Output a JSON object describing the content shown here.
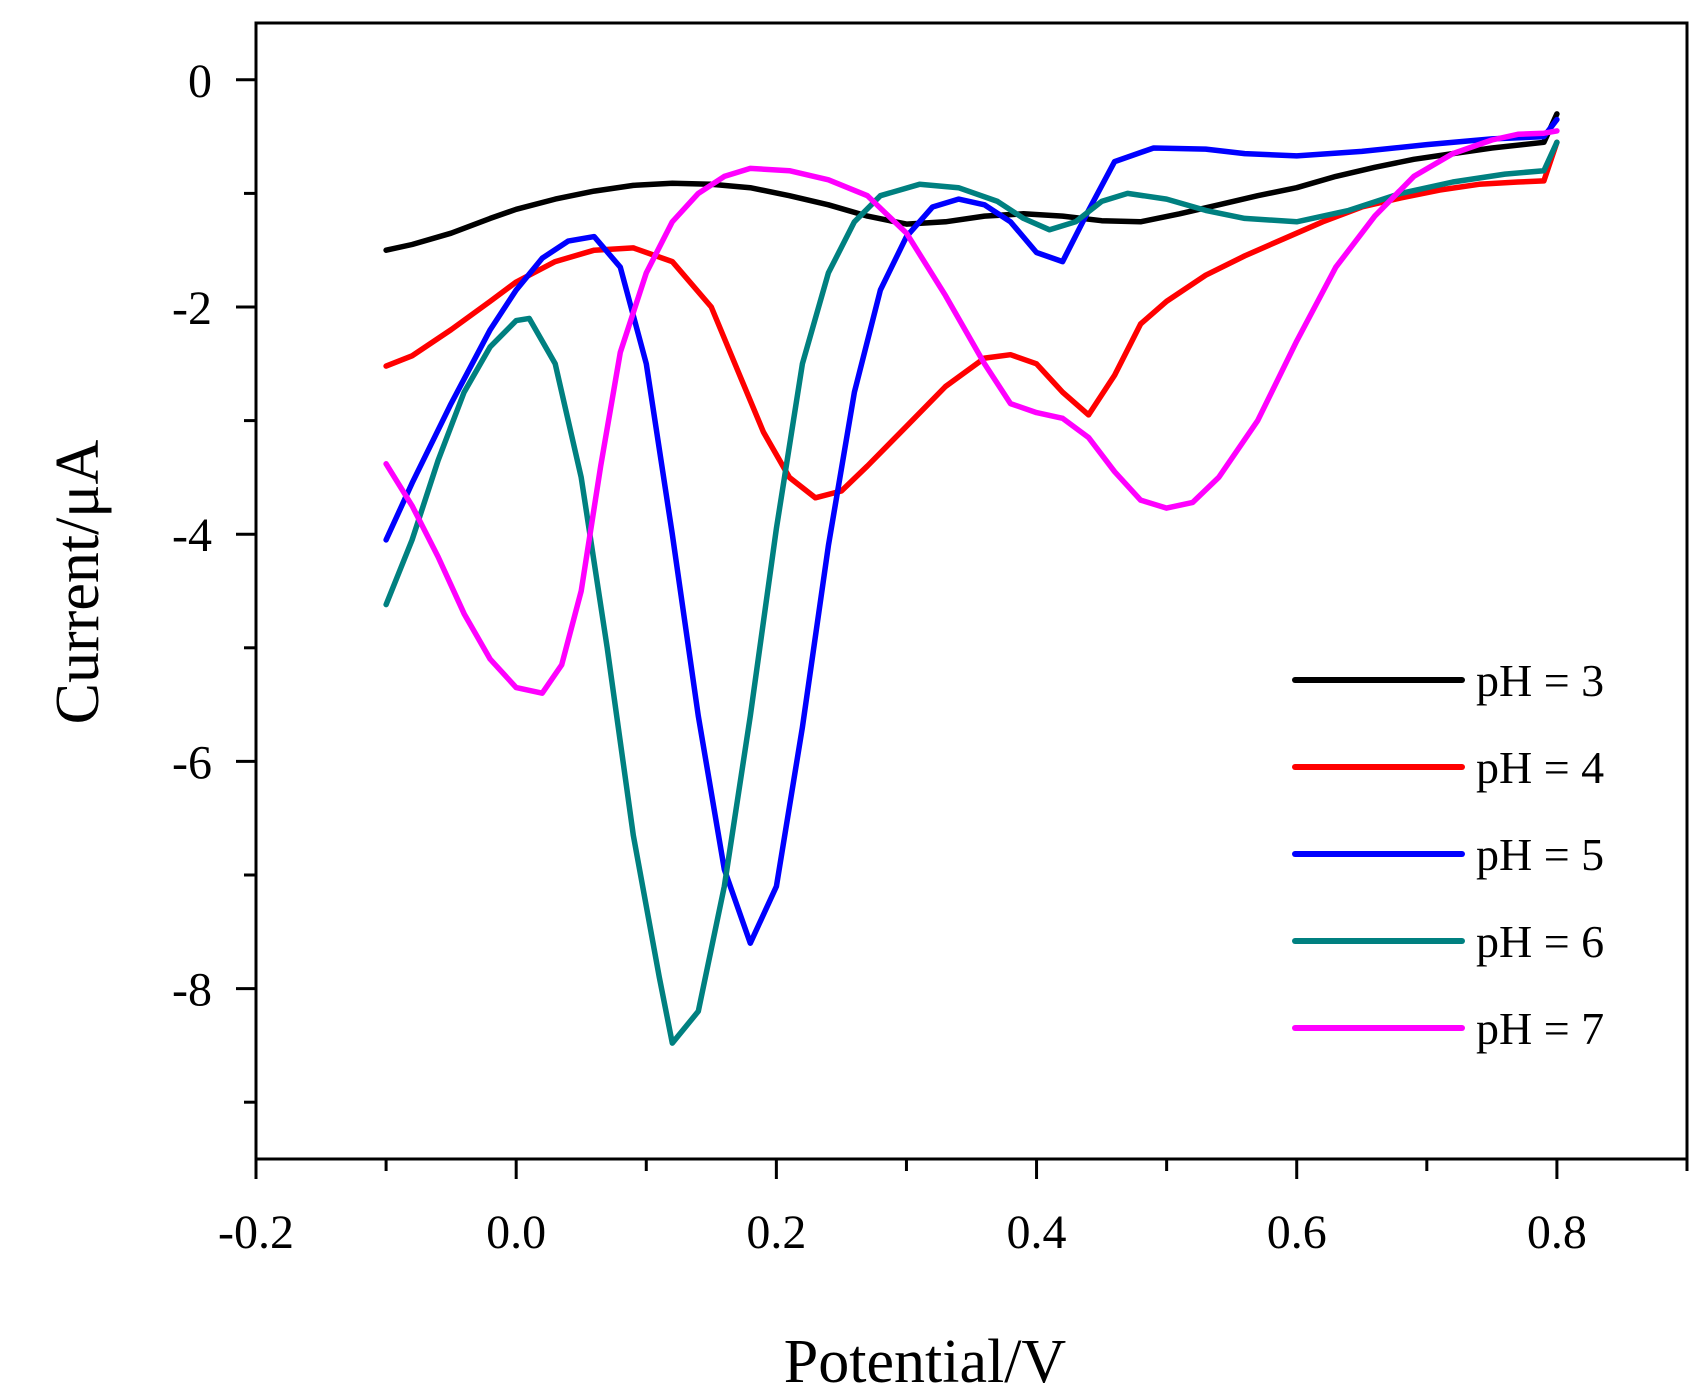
{
  "chart_data": {
    "type": "line",
    "title": "",
    "xlabel": "Potential/V",
    "ylabel": "Current/μA",
    "xlim": [
      -0.2,
      0.9
    ],
    "ylim": [
      -9.5,
      0.5
    ],
    "xticks": [
      {
        "value": -0.2,
        "label": "-0.2"
      },
      {
        "value": 0.0,
        "label": "0.0"
      },
      {
        "value": 0.2,
        "label": "0.2"
      },
      {
        "value": 0.4,
        "label": "0.4"
      },
      {
        "value": 0.6,
        "label": "0.6"
      },
      {
        "value": 0.8,
        "label": "0.8"
      }
    ],
    "xminor": [
      -0.1,
      0.1,
      0.3,
      0.5,
      0.7,
      0.9
    ],
    "yticks": [
      {
        "value": 0,
        "label": "0"
      },
      {
        "value": -2,
        "label": "-2"
      },
      {
        "value": -4,
        "label": "-4"
      },
      {
        "value": -6,
        "label": "-6"
      },
      {
        "value": -8,
        "label": "-8"
      }
    ],
    "yminor": [
      -1,
      -3,
      -5,
      -7,
      -9
    ],
    "grid": false,
    "legend_position": "bottom-right",
    "series": [
      {
        "name": "pH = 3",
        "color": "#000000",
        "points": [
          [
            -0.1,
            -1.5
          ],
          [
            -0.08,
            -1.45
          ],
          [
            -0.05,
            -1.35
          ],
          [
            -0.02,
            -1.22
          ],
          [
            0.0,
            -1.14
          ],
          [
            0.03,
            -1.05
          ],
          [
            0.06,
            -0.98
          ],
          [
            0.09,
            -0.93
          ],
          [
            0.12,
            -0.91
          ],
          [
            0.15,
            -0.92
          ],
          [
            0.18,
            -0.95
          ],
          [
            0.21,
            -1.02
          ],
          [
            0.24,
            -1.1
          ],
          [
            0.27,
            -1.2
          ],
          [
            0.3,
            -1.27
          ],
          [
            0.33,
            -1.25
          ],
          [
            0.36,
            -1.2
          ],
          [
            0.39,
            -1.18
          ],
          [
            0.42,
            -1.2
          ],
          [
            0.45,
            -1.24
          ],
          [
            0.48,
            -1.25
          ],
          [
            0.51,
            -1.18
          ],
          [
            0.54,
            -1.1
          ],
          [
            0.57,
            -1.02
          ],
          [
            0.6,
            -0.95
          ],
          [
            0.63,
            -0.85
          ],
          [
            0.66,
            -0.77
          ],
          [
            0.69,
            -0.7
          ],
          [
            0.72,
            -0.65
          ],
          [
            0.75,
            -0.6
          ],
          [
            0.79,
            -0.55
          ],
          [
            0.8,
            -0.3
          ]
        ]
      },
      {
        "name": "pH = 4",
        "color": "#ff0000",
        "points": [
          [
            -0.1,
            -2.52
          ],
          [
            -0.08,
            -2.43
          ],
          [
            -0.05,
            -2.2
          ],
          [
            -0.02,
            -1.95
          ],
          [
            0.0,
            -1.78
          ],
          [
            0.03,
            -1.6
          ],
          [
            0.06,
            -1.5
          ],
          [
            0.09,
            -1.48
          ],
          [
            0.12,
            -1.6
          ],
          [
            0.15,
            -2.0
          ],
          [
            0.17,
            -2.55
          ],
          [
            0.19,
            -3.1
          ],
          [
            0.21,
            -3.5
          ],
          [
            0.23,
            -3.68
          ],
          [
            0.25,
            -3.62
          ],
          [
            0.27,
            -3.4
          ],
          [
            0.3,
            -3.05
          ],
          [
            0.33,
            -2.7
          ],
          [
            0.36,
            -2.45
          ],
          [
            0.38,
            -2.42
          ],
          [
            0.4,
            -2.5
          ],
          [
            0.42,
            -2.75
          ],
          [
            0.44,
            -2.95
          ],
          [
            0.46,
            -2.6
          ],
          [
            0.48,
            -2.15
          ],
          [
            0.5,
            -1.95
          ],
          [
            0.53,
            -1.72
          ],
          [
            0.56,
            -1.55
          ],
          [
            0.59,
            -1.4
          ],
          [
            0.62,
            -1.25
          ],
          [
            0.65,
            -1.12
          ],
          [
            0.68,
            -1.04
          ],
          [
            0.71,
            -0.97
          ],
          [
            0.74,
            -0.92
          ],
          [
            0.77,
            -0.9
          ],
          [
            0.79,
            -0.89
          ],
          [
            0.8,
            -0.55
          ]
        ]
      },
      {
        "name": "pH = 5",
        "color": "#0000ff",
        "points": [
          [
            -0.1,
            -4.05
          ],
          [
            -0.08,
            -3.55
          ],
          [
            -0.05,
            -2.85
          ],
          [
            -0.02,
            -2.2
          ],
          [
            0.0,
            -1.85
          ],
          [
            0.02,
            -1.57
          ],
          [
            0.04,
            -1.42
          ],
          [
            0.06,
            -1.38
          ],
          [
            0.08,
            -1.65
          ],
          [
            0.1,
            -2.5
          ],
          [
            0.12,
            -4.0
          ],
          [
            0.14,
            -5.6
          ],
          [
            0.16,
            -6.95
          ],
          [
            0.18,
            -7.6
          ],
          [
            0.2,
            -7.1
          ],
          [
            0.22,
            -5.7
          ],
          [
            0.24,
            -4.1
          ],
          [
            0.26,
            -2.75
          ],
          [
            0.28,
            -1.85
          ],
          [
            0.3,
            -1.38
          ],
          [
            0.32,
            -1.12
          ],
          [
            0.34,
            -1.05
          ],
          [
            0.36,
            -1.1
          ],
          [
            0.38,
            -1.25
          ],
          [
            0.4,
            -1.52
          ],
          [
            0.42,
            -1.6
          ],
          [
            0.44,
            -1.15
          ],
          [
            0.46,
            -0.72
          ],
          [
            0.49,
            -0.6
          ],
          [
            0.53,
            -0.61
          ],
          [
            0.56,
            -0.65
          ],
          [
            0.6,
            -0.67
          ],
          [
            0.65,
            -0.63
          ],
          [
            0.7,
            -0.57
          ],
          [
            0.75,
            -0.52
          ],
          [
            0.79,
            -0.5
          ],
          [
            0.8,
            -0.35
          ]
        ]
      },
      {
        "name": "pH = 6",
        "color": "#008080",
        "points": [
          [
            -0.1,
            -4.62
          ],
          [
            -0.08,
            -4.05
          ],
          [
            -0.06,
            -3.35
          ],
          [
            -0.04,
            -2.75
          ],
          [
            -0.02,
            -2.35
          ],
          [
            0.0,
            -2.12
          ],
          [
            0.01,
            -2.1
          ],
          [
            0.03,
            -2.5
          ],
          [
            0.05,
            -3.5
          ],
          [
            0.07,
            -5.0
          ],
          [
            0.09,
            -6.65
          ],
          [
            0.11,
            -7.9
          ],
          [
            0.12,
            -8.48
          ],
          [
            0.14,
            -8.2
          ],
          [
            0.16,
            -7.1
          ],
          [
            0.18,
            -5.6
          ],
          [
            0.2,
            -3.95
          ],
          [
            0.22,
            -2.5
          ],
          [
            0.24,
            -1.7
          ],
          [
            0.26,
            -1.25
          ],
          [
            0.28,
            -1.02
          ],
          [
            0.31,
            -0.92
          ],
          [
            0.34,
            -0.95
          ],
          [
            0.37,
            -1.07
          ],
          [
            0.39,
            -1.22
          ],
          [
            0.41,
            -1.32
          ],
          [
            0.43,
            -1.25
          ],
          [
            0.45,
            -1.07
          ],
          [
            0.47,
            -1.0
          ],
          [
            0.5,
            -1.05
          ],
          [
            0.53,
            -1.15
          ],
          [
            0.56,
            -1.22
          ],
          [
            0.6,
            -1.25
          ],
          [
            0.64,
            -1.15
          ],
          [
            0.68,
            -1.0
          ],
          [
            0.72,
            -0.9
          ],
          [
            0.76,
            -0.83
          ],
          [
            0.79,
            -0.8
          ],
          [
            0.8,
            -0.55
          ]
        ]
      },
      {
        "name": "pH = 7",
        "color": "#ff00ff",
        "points": [
          [
            -0.1,
            -3.38
          ],
          [
            -0.08,
            -3.75
          ],
          [
            -0.06,
            -4.2
          ],
          [
            -0.04,
            -4.7
          ],
          [
            -0.02,
            -5.1
          ],
          [
            0.0,
            -5.35
          ],
          [
            0.02,
            -5.4
          ],
          [
            0.035,
            -5.15
          ],
          [
            0.05,
            -4.5
          ],
          [
            0.065,
            -3.4
          ],
          [
            0.08,
            -2.4
          ],
          [
            0.1,
            -1.7
          ],
          [
            0.12,
            -1.25
          ],
          [
            0.14,
            -1.0
          ],
          [
            0.16,
            -0.85
          ],
          [
            0.18,
            -0.78
          ],
          [
            0.21,
            -0.8
          ],
          [
            0.24,
            -0.88
          ],
          [
            0.27,
            -1.02
          ],
          [
            0.3,
            -1.35
          ],
          [
            0.33,
            -1.9
          ],
          [
            0.36,
            -2.5
          ],
          [
            0.38,
            -2.85
          ],
          [
            0.4,
            -2.93
          ],
          [
            0.42,
            -2.98
          ],
          [
            0.44,
            -3.15
          ],
          [
            0.46,
            -3.45
          ],
          [
            0.48,
            -3.7
          ],
          [
            0.5,
            -3.77
          ],
          [
            0.52,
            -3.72
          ],
          [
            0.54,
            -3.5
          ],
          [
            0.57,
            -3.0
          ],
          [
            0.6,
            -2.3
          ],
          [
            0.63,
            -1.65
          ],
          [
            0.66,
            -1.2
          ],
          [
            0.69,
            -0.85
          ],
          [
            0.72,
            -0.65
          ],
          [
            0.75,
            -0.53
          ],
          [
            0.77,
            -0.48
          ],
          [
            0.79,
            -0.47
          ],
          [
            0.8,
            -0.45
          ]
        ]
      }
    ]
  }
}
